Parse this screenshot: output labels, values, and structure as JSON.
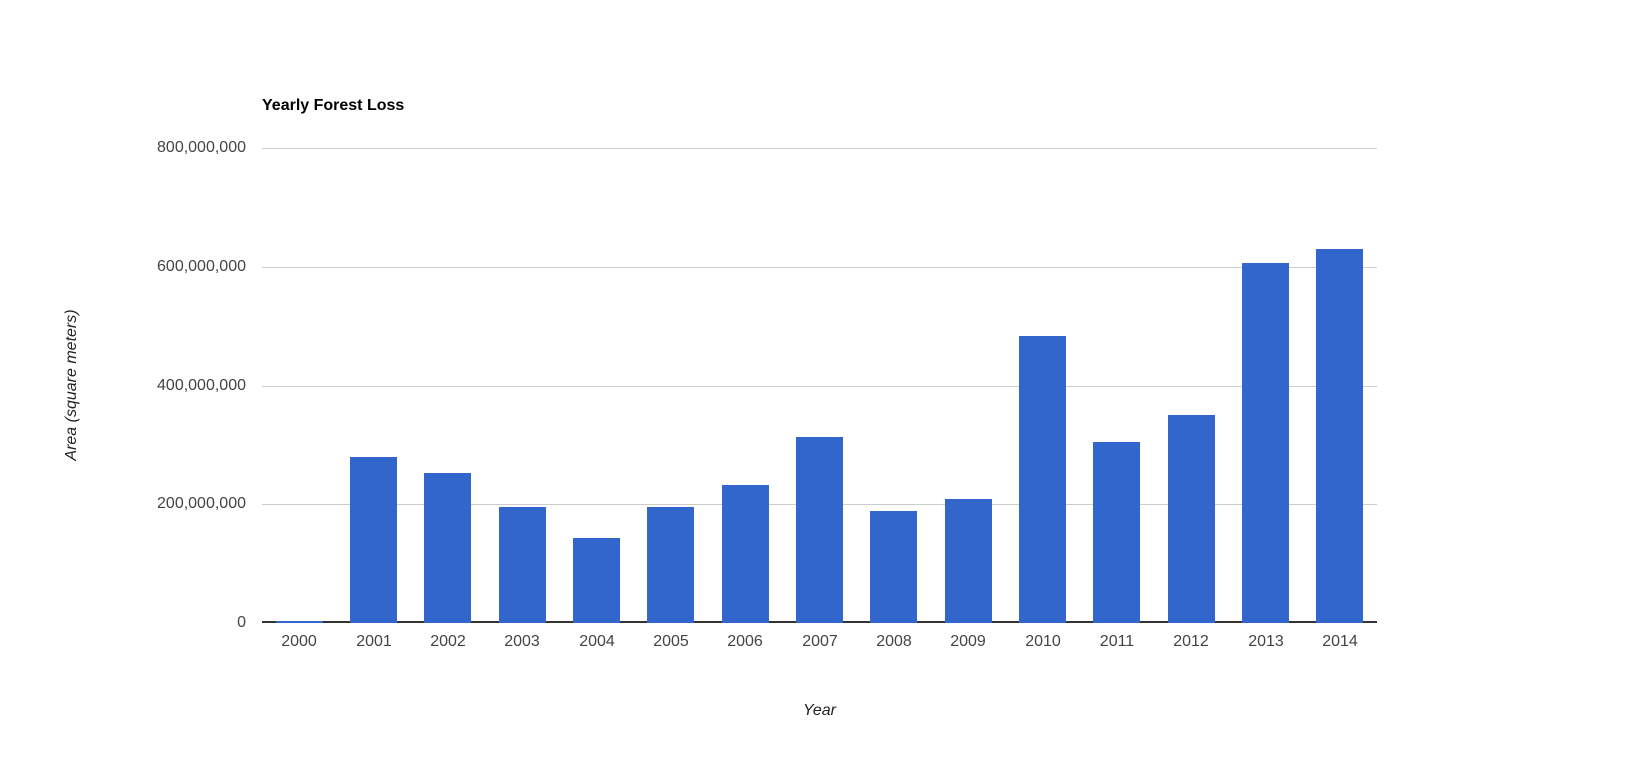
{
  "title": "Yearly Forest Loss",
  "chart_data": {
    "type": "bar",
    "title": "Yearly Forest Loss",
    "xlabel": "Year",
    "ylabel": "Area (square meters)",
    "categories": [
      "2000",
      "2001",
      "2002",
      "2003",
      "2004",
      "2005",
      "2006",
      "2007",
      "2008",
      "2009",
      "2010",
      "2011",
      "2012",
      "2013",
      "2014"
    ],
    "values": [
      3000000,
      280000000,
      252000000,
      196000000,
      143000000,
      195000000,
      232000000,
      313000000,
      189000000,
      208000000,
      483000000,
      305000000,
      351000000,
      607000000,
      630000000
    ],
    "ylim": [
      0,
      800000000
    ],
    "yticks": [
      0,
      200000000,
      400000000,
      600000000,
      800000000
    ],
    "ytick_labels": [
      "0",
      "200,000,000",
      "400,000,000",
      "600,000,000",
      "800,000,000"
    ],
    "grid": true,
    "legend": "none",
    "bar_color": "#3366cc",
    "gridline_color": "#cccccc",
    "axis_line_color": "#333333",
    "tick_label_color": "#444444",
    "axis_title_color": "#222222"
  }
}
